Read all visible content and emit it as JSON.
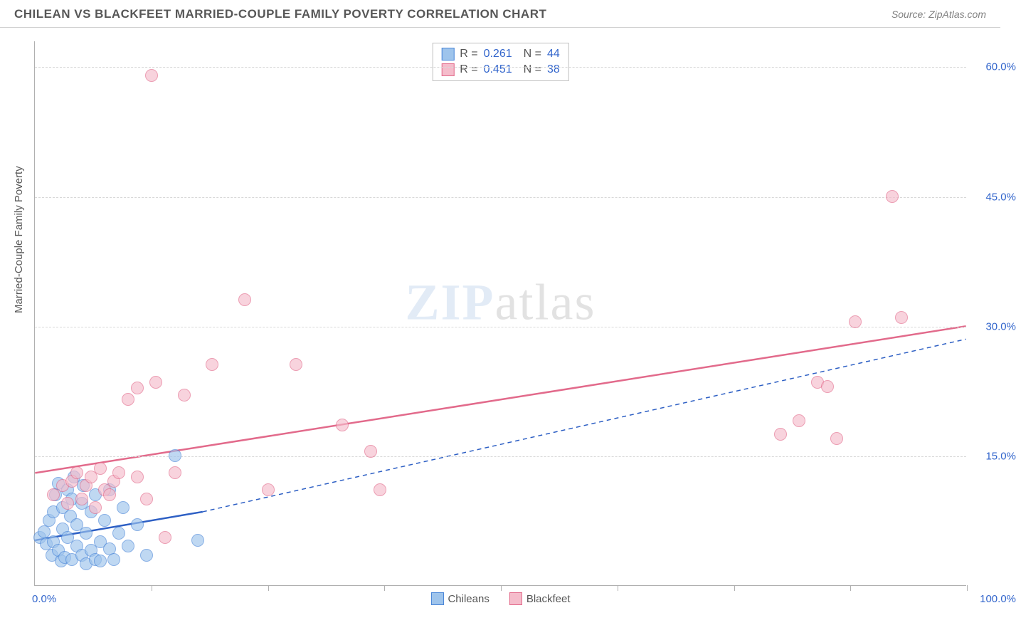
{
  "header": {
    "title": "CHILEAN VS BLACKFEET MARRIED-COUPLE FAMILY POVERTY CORRELATION CHART",
    "source_prefix": "Source: ",
    "source_name": "ZipAtlas.com"
  },
  "chart": {
    "type": "scatter",
    "ylabel": "Married-Couple Family Poverty",
    "xlim": [
      0,
      100
    ],
    "ylim": [
      0,
      63
    ],
    "background_color": "#ffffff",
    "grid_color": "#d8d8d8",
    "axis_color": "#b0b0b0",
    "tick_label_color": "#3366cc",
    "yticks": [
      {
        "value": 15.0,
        "label": "15.0%"
      },
      {
        "value": 30.0,
        "label": "30.0%"
      },
      {
        "value": 45.0,
        "label": "45.0%"
      },
      {
        "value": 60.0,
        "label": "60.0%"
      }
    ],
    "xtick_positions": [
      12.5,
      25,
      37.5,
      50,
      62.5,
      75,
      87.5,
      100
    ],
    "xtick_labels": [
      {
        "value": 0,
        "label": "0.0%"
      },
      {
        "value": 100,
        "label": "100.0%"
      }
    ],
    "watermark": {
      "part1": "ZIP",
      "part2": "atlas"
    },
    "series": [
      {
        "name": "Chileans",
        "marker_fill": "#9ec4ec",
        "marker_stroke": "#4a86d8",
        "marker_opacity": 0.65,
        "marker_radius": 9,
        "trend_color": "#2d5fc4",
        "trend_width": 2.5,
        "trend_solid": [
          [
            0,
            5.2
          ],
          [
            18,
            8.5
          ]
        ],
        "trend_dash": [
          [
            18,
            8.5
          ],
          [
            100,
            28.5
          ]
        ],
        "points": [
          [
            0.5,
            5.5
          ],
          [
            1,
            6.2
          ],
          [
            1.2,
            4.8
          ],
          [
            1.5,
            7.5
          ],
          [
            1.8,
            3.5
          ],
          [
            2,
            5
          ],
          [
            2,
            8.5
          ],
          [
            2.2,
            10.5
          ],
          [
            2.5,
            4
          ],
          [
            2.5,
            11.8
          ],
          [
            2.8,
            2.8
          ],
          [
            3,
            6.5
          ],
          [
            3,
            9
          ],
          [
            3.2,
            3.2
          ],
          [
            3.5,
            11
          ],
          [
            3.5,
            5.5
          ],
          [
            3.8,
            8
          ],
          [
            4,
            3
          ],
          [
            4,
            10
          ],
          [
            4.2,
            12.5
          ],
          [
            4.5,
            4.5
          ],
          [
            4.5,
            7
          ],
          [
            5,
            3.5
          ],
          [
            5,
            9.5
          ],
          [
            5.2,
            11.5
          ],
          [
            5.5,
            2.5
          ],
          [
            5.5,
            6
          ],
          [
            6,
            4
          ],
          [
            6,
            8.5
          ],
          [
            6.5,
            3
          ],
          [
            6.5,
            10.5
          ],
          [
            7,
            5
          ],
          [
            7,
            2.8
          ],
          [
            7.5,
            7.5
          ],
          [
            8,
            4.2
          ],
          [
            8,
            11
          ],
          [
            8.5,
            3
          ],
          [
            9,
            6
          ],
          [
            9.5,
            9
          ],
          [
            10,
            4.5
          ],
          [
            11,
            7
          ],
          [
            12,
            3.5
          ],
          [
            15,
            15
          ],
          [
            17.5,
            5.2
          ]
        ]
      },
      {
        "name": "Blackfeet",
        "marker_fill": "#f5bccb",
        "marker_stroke": "#e26a8b",
        "marker_opacity": 0.65,
        "marker_radius": 9,
        "trend_color": "#e26a8b",
        "trend_width": 2.5,
        "trend_solid": [
          [
            0,
            13
          ],
          [
            100,
            30
          ]
        ],
        "trend_dash": null,
        "points": [
          [
            2,
            10.5
          ],
          [
            3,
            11.5
          ],
          [
            3.5,
            9.5
          ],
          [
            4,
            12
          ],
          [
            4.5,
            13
          ],
          [
            5,
            10
          ],
          [
            5.5,
            11.5
          ],
          [
            6,
            12.5
          ],
          [
            6.5,
            9
          ],
          [
            7,
            13.5
          ],
          [
            7.5,
            11
          ],
          [
            8,
            10.5
          ],
          [
            8.5,
            12
          ],
          [
            9,
            13
          ],
          [
            10,
            21.5
          ],
          [
            11,
            12.5
          ],
          [
            11,
            22.8
          ],
          [
            12,
            10
          ],
          [
            12.5,
            59
          ],
          [
            13,
            23.5
          ],
          [
            14,
            5.5
          ],
          [
            15,
            13
          ],
          [
            16,
            22
          ],
          [
            19,
            25.5
          ],
          [
            22.5,
            33
          ],
          [
            25,
            11
          ],
          [
            28,
            25.5
          ],
          [
            33,
            18.5
          ],
          [
            36,
            15.5
          ],
          [
            37,
            11
          ],
          [
            80,
            17.5
          ],
          [
            82,
            19
          ],
          [
            84,
            23.5
          ],
          [
            85,
            23
          ],
          [
            86,
            17
          ],
          [
            88,
            30.5
          ],
          [
            92,
            45
          ],
          [
            93,
            31
          ]
        ]
      }
    ],
    "stat_legend": [
      {
        "swatch_fill": "#9ec4ec",
        "swatch_stroke": "#4a86d8",
        "r_label": "R =",
        "r_value": "0.261",
        "n_label": "N =",
        "n_value": "44"
      },
      {
        "swatch_fill": "#f5bccb",
        "swatch_stroke": "#e26a8b",
        "r_label": "R =",
        "r_value": "0.451",
        "n_label": "N =",
        "n_value": "38"
      }
    ],
    "bottom_legend": [
      {
        "swatch_fill": "#9ec4ec",
        "swatch_stroke": "#4a86d8",
        "label": "Chileans"
      },
      {
        "swatch_fill": "#f5bccb",
        "swatch_stroke": "#e26a8b",
        "label": "Blackfeet"
      }
    ]
  }
}
